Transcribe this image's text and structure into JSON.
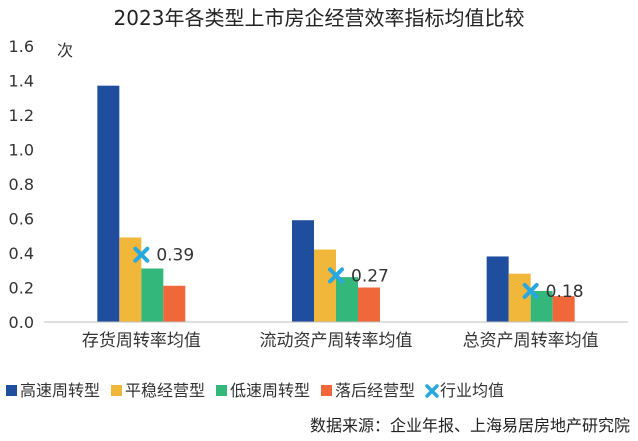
{
  "chart_data": {
    "type": "bar",
    "title": "2023年各类型上市房企经营效率指标均值比较",
    "ylabel": "次",
    "ylim": [
      0,
      1.6
    ],
    "yticks": [
      "0.0",
      "0.2",
      "0.4",
      "0.6",
      "0.8",
      "1.0",
      "1.2",
      "1.4",
      "1.6"
    ],
    "grid": false,
    "legend_position": "bottom",
    "categories": [
      "存货周转率均值",
      "流动资产周转率均值",
      "总资产周转率均值"
    ],
    "series": [
      {
        "name": "高速周转型",
        "color": "#1f4e9e",
        "values": [
          1.37,
          0.59,
          0.38
        ]
      },
      {
        "name": "平稳经营型",
        "color": "#f0b73a",
        "values": [
          0.49,
          0.42,
          0.28
        ]
      },
      {
        "name": "低速周转型",
        "color": "#34b77a",
        "values": [
          0.31,
          0.26,
          0.18
        ]
      },
      {
        "name": "落后经营型",
        "color": "#f0673a",
        "values": [
          0.21,
          0.2,
          0.15
        ]
      }
    ],
    "industry_avg": {
      "name": "行业均值",
      "color": "#29a8e0",
      "marker": "x-marker",
      "values": [
        0.39,
        0.27,
        0.18
      ],
      "labels": [
        "0.39",
        "0.27",
        "0.18"
      ]
    }
  },
  "source_text": "数据来源：企业年报、上海易居房地产研究院"
}
